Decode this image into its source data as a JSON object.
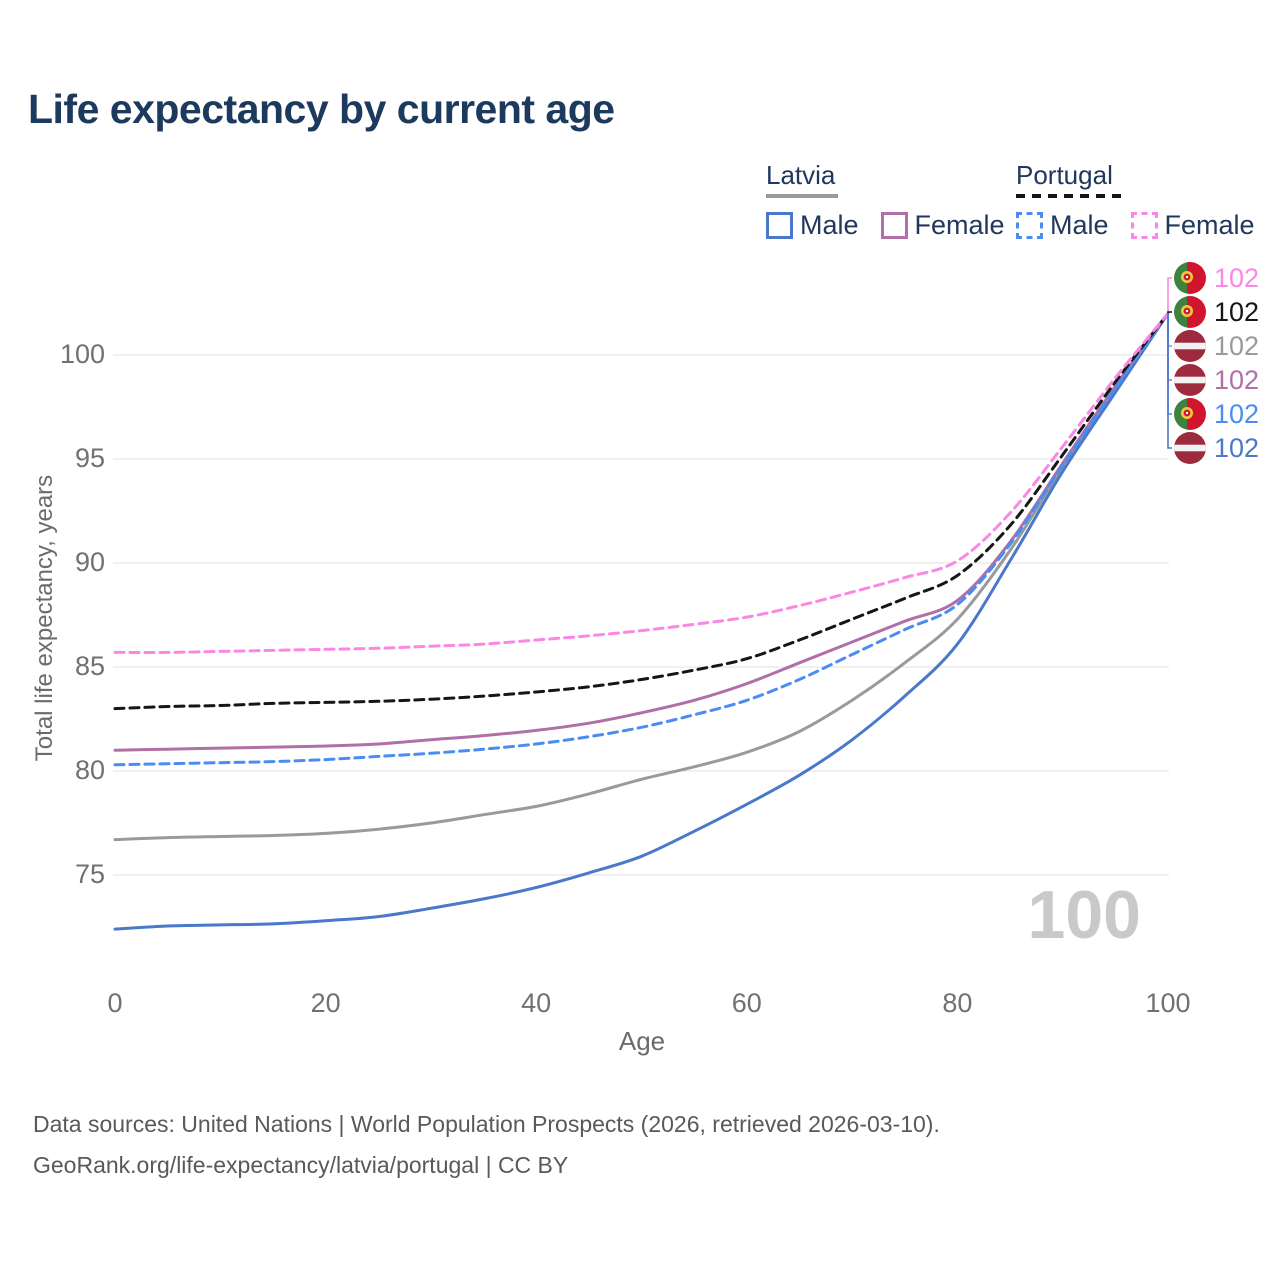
{
  "header": {
    "title": "Life expectancy by current age"
  },
  "legend": {
    "groups": [
      {
        "id": "latvia",
        "label": "Latvia",
        "line_style": "solid",
        "line_color": "#9a9a9a",
        "items": [
          {
            "id": "latvia-male",
            "label": "Male",
            "color": "#4a78cb",
            "line_style": "solid"
          },
          {
            "id": "latvia-female",
            "label": "Female",
            "color": "#b06fa6",
            "line_style": "solid"
          }
        ]
      },
      {
        "id": "portugal",
        "label": "Portugal",
        "line_style": "dashed",
        "line_color": "#141414",
        "items": [
          {
            "id": "portugal-male",
            "label": "Male",
            "color": "#4a8df2",
            "line_style": "dashed"
          },
          {
            "id": "portugal-female",
            "label": "Female",
            "color": "#fb87e4",
            "line_style": "dashed"
          }
        ]
      }
    ]
  },
  "chart_data": {
    "type": "line",
    "title": "Life expectancy by current age",
    "xlabel": "Age",
    "ylabel": "Total life expectancy, years",
    "xticks": [
      0,
      20,
      40,
      60,
      80,
      100
    ],
    "yticks": [
      75,
      80,
      85,
      90,
      95,
      100
    ],
    "xlim": [
      0,
      100
    ],
    "ylim": [
      72,
      103
    ],
    "grid": "horizontal-only",
    "legend_position": "top-right",
    "series": [
      {
        "id": "latvia-total",
        "name": "Latvia",
        "country": "latvia",
        "color": "#9a9a9a",
        "line_style": "solid",
        "points": [
          [
            0,
            76.7
          ],
          [
            5,
            76.8
          ],
          [
            10,
            76.85
          ],
          [
            15,
            76.9
          ],
          [
            20,
            77.0
          ],
          [
            25,
            77.2
          ],
          [
            30,
            77.5
          ],
          [
            35,
            77.9
          ],
          [
            40,
            78.3
          ],
          [
            45,
            78.9
          ],
          [
            50,
            79.6
          ],
          [
            55,
            80.2
          ],
          [
            60,
            80.9
          ],
          [
            65,
            81.9
          ],
          [
            70,
            83.4
          ],
          [
            75,
            85.2
          ],
          [
            80,
            87.3
          ],
          [
            85,
            90.6
          ],
          [
            90,
            94.6
          ],
          [
            95,
            98.3
          ],
          [
            100,
            102
          ]
        ]
      },
      {
        "id": "latvia-male",
        "name": "Latvia Male",
        "country": "latvia",
        "color": "#4a78cb",
        "line_style": "solid",
        "points": [
          [
            0,
            72.4
          ],
          [
            5,
            72.55
          ],
          [
            10,
            72.6
          ],
          [
            15,
            72.65
          ],
          [
            20,
            72.8
          ],
          [
            25,
            73.0
          ],
          [
            30,
            73.4
          ],
          [
            35,
            73.85
          ],
          [
            40,
            74.4
          ],
          [
            45,
            75.1
          ],
          [
            50,
            75.9
          ],
          [
            55,
            77.1
          ],
          [
            60,
            78.4
          ],
          [
            65,
            79.8
          ],
          [
            70,
            81.5
          ],
          [
            75,
            83.6
          ],
          [
            80,
            86.1
          ],
          [
            85,
            90.1
          ],
          [
            90,
            94.4
          ],
          [
            95,
            98.2
          ],
          [
            100,
            102
          ]
        ]
      },
      {
        "id": "latvia-female",
        "name": "Latvia Female",
        "country": "latvia",
        "color": "#b06fa6",
        "line_style": "solid",
        "points": [
          [
            0,
            81.0
          ],
          [
            5,
            81.05
          ],
          [
            10,
            81.1
          ],
          [
            15,
            81.15
          ],
          [
            20,
            81.2
          ],
          [
            25,
            81.3
          ],
          [
            30,
            81.5
          ],
          [
            35,
            81.7
          ],
          [
            40,
            81.95
          ],
          [
            45,
            82.3
          ],
          [
            50,
            82.8
          ],
          [
            55,
            83.4
          ],
          [
            60,
            84.2
          ],
          [
            65,
            85.2
          ],
          [
            70,
            86.2
          ],
          [
            75,
            87.2
          ],
          [
            80,
            88.2
          ],
          [
            85,
            91.0
          ],
          [
            90,
            94.8
          ],
          [
            95,
            98.5
          ],
          [
            100,
            102
          ]
        ]
      },
      {
        "id": "portugal-male",
        "name": "Portugal Male",
        "country": "portugal",
        "color": "#4a8df2",
        "line_style": "dashed",
        "points": [
          [
            0,
            80.3
          ],
          [
            5,
            80.35
          ],
          [
            10,
            80.4
          ],
          [
            15,
            80.45
          ],
          [
            20,
            80.55
          ],
          [
            25,
            80.7
          ],
          [
            30,
            80.85
          ],
          [
            35,
            81.05
          ],
          [
            40,
            81.3
          ],
          [
            45,
            81.65
          ],
          [
            50,
            82.1
          ],
          [
            55,
            82.7
          ],
          [
            60,
            83.4
          ],
          [
            65,
            84.4
          ],
          [
            70,
            85.6
          ],
          [
            75,
            86.8
          ],
          [
            80,
            88.0
          ],
          [
            85,
            90.9
          ],
          [
            90,
            94.7
          ],
          [
            95,
            98.4
          ],
          [
            100,
            102
          ]
        ]
      },
      {
        "id": "portugal-total",
        "name": "Portugal",
        "country": "portugal",
        "color": "#161616",
        "line_style": "dashed",
        "points": [
          [
            0,
            83.0
          ],
          [
            5,
            83.1
          ],
          [
            10,
            83.15
          ],
          [
            15,
            83.25
          ],
          [
            20,
            83.3
          ],
          [
            25,
            83.35
          ],
          [
            30,
            83.45
          ],
          [
            35,
            83.6
          ],
          [
            40,
            83.8
          ],
          [
            45,
            84.05
          ],
          [
            50,
            84.4
          ],
          [
            55,
            84.85
          ],
          [
            60,
            85.4
          ],
          [
            65,
            86.3
          ],
          [
            70,
            87.3
          ],
          [
            75,
            88.3
          ],
          [
            80,
            89.4
          ],
          [
            85,
            91.8
          ],
          [
            90,
            95.2
          ],
          [
            95,
            98.7
          ],
          [
            100,
            102
          ]
        ]
      },
      {
        "id": "portugal-female",
        "name": "Portugal Female",
        "country": "portugal",
        "color": "#fb87e4",
        "line_style": "dashed",
        "points": [
          [
            0,
            85.7
          ],
          [
            5,
            85.7
          ],
          [
            10,
            85.75
          ],
          [
            15,
            85.8
          ],
          [
            20,
            85.85
          ],
          [
            25,
            85.9
          ],
          [
            30,
            86.0
          ],
          [
            35,
            86.1
          ],
          [
            40,
            86.3
          ],
          [
            45,
            86.5
          ],
          [
            50,
            86.75
          ],
          [
            55,
            87.05
          ],
          [
            60,
            87.4
          ],
          [
            65,
            87.95
          ],
          [
            70,
            88.6
          ],
          [
            75,
            89.3
          ],
          [
            80,
            90.1
          ],
          [
            85,
            92.4
          ],
          [
            90,
            95.6
          ],
          [
            95,
            98.9
          ],
          [
            100,
            102
          ]
        ]
      }
    ],
    "end_labels": [
      {
        "series": "portugal-female",
        "flag": "portugal",
        "value": "102"
      },
      {
        "series": "portugal-total",
        "flag": "portugal",
        "value": "102"
      },
      {
        "series": "latvia-total",
        "flag": "latvia",
        "value": "102"
      },
      {
        "series": "latvia-female",
        "flag": "latvia",
        "value": "102"
      },
      {
        "series": "portugal-male",
        "flag": "portugal",
        "value": "102"
      },
      {
        "series": "latvia-male",
        "flag": "latvia",
        "value": "102"
      }
    ],
    "annotations": {
      "watermark": "100"
    }
  },
  "footer": {
    "line1": "Data sources: United Nations | World Population Prospects (2026, retrieved 2026-03-10).",
    "line2": "GeoRank.org/life-expectancy/latvia/portugal | CC BY"
  }
}
